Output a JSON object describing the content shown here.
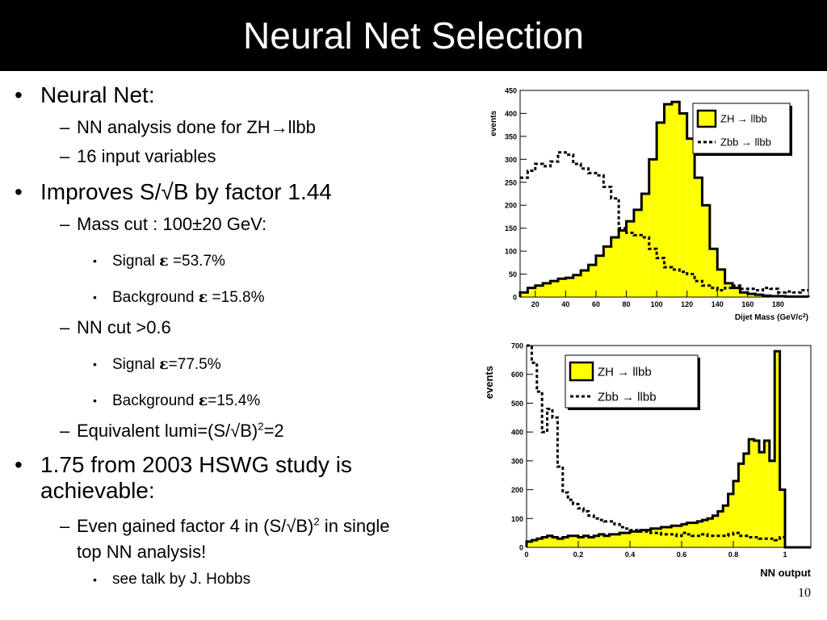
{
  "slide": {
    "title": "Neural Net Selection",
    "page_number": "10"
  },
  "content": {
    "b1": "Neural Net:",
    "b1_s1_a": "NN analysis done for ZH",
    "b1_s1_arrow": "→",
    "b1_s1_b": "llbb",
    "b1_s2": "16 input variables",
    "b2_a": "Improves S/",
    "b2_sqrt": "√",
    "b2_b": "B by factor 1.44",
    "b2_s1_a": "Mass cut : 100",
    "b2_s1_pm": "±",
    "b2_s1_b": "20 GeV:",
    "b2_s1_i1_a": "Signal ",
    "b2_s1_i1_eps": "ε",
    "b2_s1_i1_b": " =53.7%",
    "b2_s1_i2_a": "Background ",
    "b2_s1_i2_eps": "ε",
    "b2_s1_i2_b": " =15.8%",
    "b2_s2": "NN cut >0.6",
    "b2_s2_i1_a": "Signal ",
    "b2_s2_i1_eps": "ε",
    "b2_s2_i1_b": "=77.5%",
    "b2_s2_i2_a": "Background ",
    "b2_s2_i2_eps": "ε",
    "b2_s2_i2_b": "=15.4%",
    "b2_s3_a": "Equivalent lumi=(S/",
    "b2_s3_sqrt": "√",
    "b2_s3_b": "B)",
    "b2_s3_sup": "2",
    "b2_s3_c": "=2",
    "b3_l1": "1.75 from 2003 HSWG study is",
    "b3_l2": "achievable:",
    "b3_s1_a": "Even gained factor 4 in (S/",
    "b3_s1_sqrt": "√",
    "b3_s1_b": "B)",
    "b3_s1_sup": "2",
    "b3_s1_c": " in single",
    "b3_s1_l2": "top NN analysis!",
    "b3_s1_i1": "see talk by J. Hobbs"
  },
  "chart_data": [
    {
      "type": "step-histogram",
      "xlabel": "Dijet Mass (GeV/c",
      "xlabel_sup": "2",
      "xlabel_tail": ")",
      "ylabel": "events",
      "xlim": [
        10,
        200
      ],
      "ylim": [
        0,
        450
      ],
      "xticks": [
        20,
        40,
        60,
        80,
        100,
        120,
        140,
        160,
        180
      ],
      "yticks": [
        0,
        50,
        100,
        150,
        200,
        250,
        300,
        350,
        400,
        450
      ],
      "bin_edges": [
        10,
        15,
        20,
        25,
        30,
        35,
        40,
        45,
        50,
        55,
        60,
        65,
        70,
        75,
        80,
        85,
        90,
        95,
        100,
        105,
        110,
        115,
        120,
        125,
        130,
        135,
        140,
        145,
        150,
        155,
        160,
        165,
        170,
        175,
        180,
        185,
        190,
        195,
        200
      ],
      "series": [
        {
          "name": "ZH",
          "arrow": "→",
          "decay": "llbb",
          "style": "filled-yellow",
          "values": [
            10,
            20,
            25,
            30,
            35,
            40,
            42,
            48,
            58,
            70,
            90,
            110,
            130,
            145,
            165,
            190,
            225,
            300,
            380,
            420,
            425,
            400,
            345,
            260,
            200,
            105,
            60,
            30,
            20,
            10,
            7,
            5,
            3,
            2,
            2,
            1,
            1,
            1
          ]
        },
        {
          "name": "Zbb",
          "arrow": "→",
          "decay": "llbb",
          "style": "dashed",
          "values": [
            260,
            275,
            290,
            285,
            295,
            315,
            310,
            290,
            280,
            270,
            265,
            240,
            215,
            150,
            140,
            135,
            130,
            105,
            85,
            65,
            60,
            55,
            50,
            35,
            25,
            20,
            15,
            20,
            25,
            18,
            18,
            15,
            20,
            18,
            10,
            12,
            10,
            15
          ]
        }
      ]
    },
    {
      "type": "step-histogram",
      "xlabel": "NN output",
      "ylabel": "events",
      "xlim": [
        0,
        1.1
      ],
      "ylim": [
        0,
        700
      ],
      "xticks": [
        0,
        0.2,
        0.4,
        0.6,
        0.8,
        1
      ],
      "xtick_labels": [
        "0",
        "0.2",
        "0.4",
        "0.6",
        "0.8",
        "1"
      ],
      "yticks": [
        0,
        100,
        200,
        300,
        400,
        500,
        600,
        700
      ],
      "bin_edges": [
        0,
        0.02,
        0.04,
        0.06,
        0.08,
        0.1,
        0.12,
        0.14,
        0.16,
        0.18,
        0.2,
        0.22,
        0.24,
        0.26,
        0.28,
        0.3,
        0.32,
        0.34,
        0.36,
        0.38,
        0.4,
        0.42,
        0.44,
        0.46,
        0.48,
        0.5,
        0.52,
        0.54,
        0.56,
        0.58,
        0.6,
        0.62,
        0.64,
        0.66,
        0.68,
        0.7,
        0.72,
        0.74,
        0.76,
        0.78,
        0.8,
        0.82,
        0.84,
        0.86,
        0.88,
        0.9,
        0.92,
        0.94,
        0.96,
        0.98,
        1,
        1.02,
        1.04,
        1.06,
        1.08,
        1.1
      ],
      "series": [
        {
          "name": "ZH",
          "arrow": "→",
          "decay": "llbb",
          "style": "filled-yellow",
          "values": [
            20,
            25,
            30,
            35,
            40,
            35,
            30,
            35,
            40,
            40,
            35,
            40,
            35,
            40,
            45,
            40,
            45,
            45,
            50,
            50,
            55,
            55,
            60,
            60,
            65,
            65,
            70,
            70,
            75,
            75,
            80,
            85,
            85,
            90,
            95,
            100,
            110,
            125,
            145,
            185,
            230,
            290,
            325,
            375,
            370,
            330,
            370,
            300,
            680,
            200,
            0,
            0,
            0,
            0,
            0
          ]
        },
        {
          "name": "Zbb",
          "arrow": "→",
          "decay": "llbb",
          "style": "dashed",
          "values": [
            700,
            640,
            540,
            400,
            480,
            450,
            280,
            190,
            165,
            150,
            135,
            125,
            110,
            100,
            95,
            90,
            90,
            80,
            70,
            65,
            60,
            60,
            55,
            55,
            50,
            50,
            45,
            45,
            45,
            40,
            50,
            45,
            40,
            40,
            45,
            40,
            40,
            40,
            40,
            45,
            50,
            40,
            40,
            35,
            35,
            30,
            30,
            30,
            25,
            35,
            0,
            0,
            0,
            0,
            0
          ]
        }
      ]
    }
  ]
}
